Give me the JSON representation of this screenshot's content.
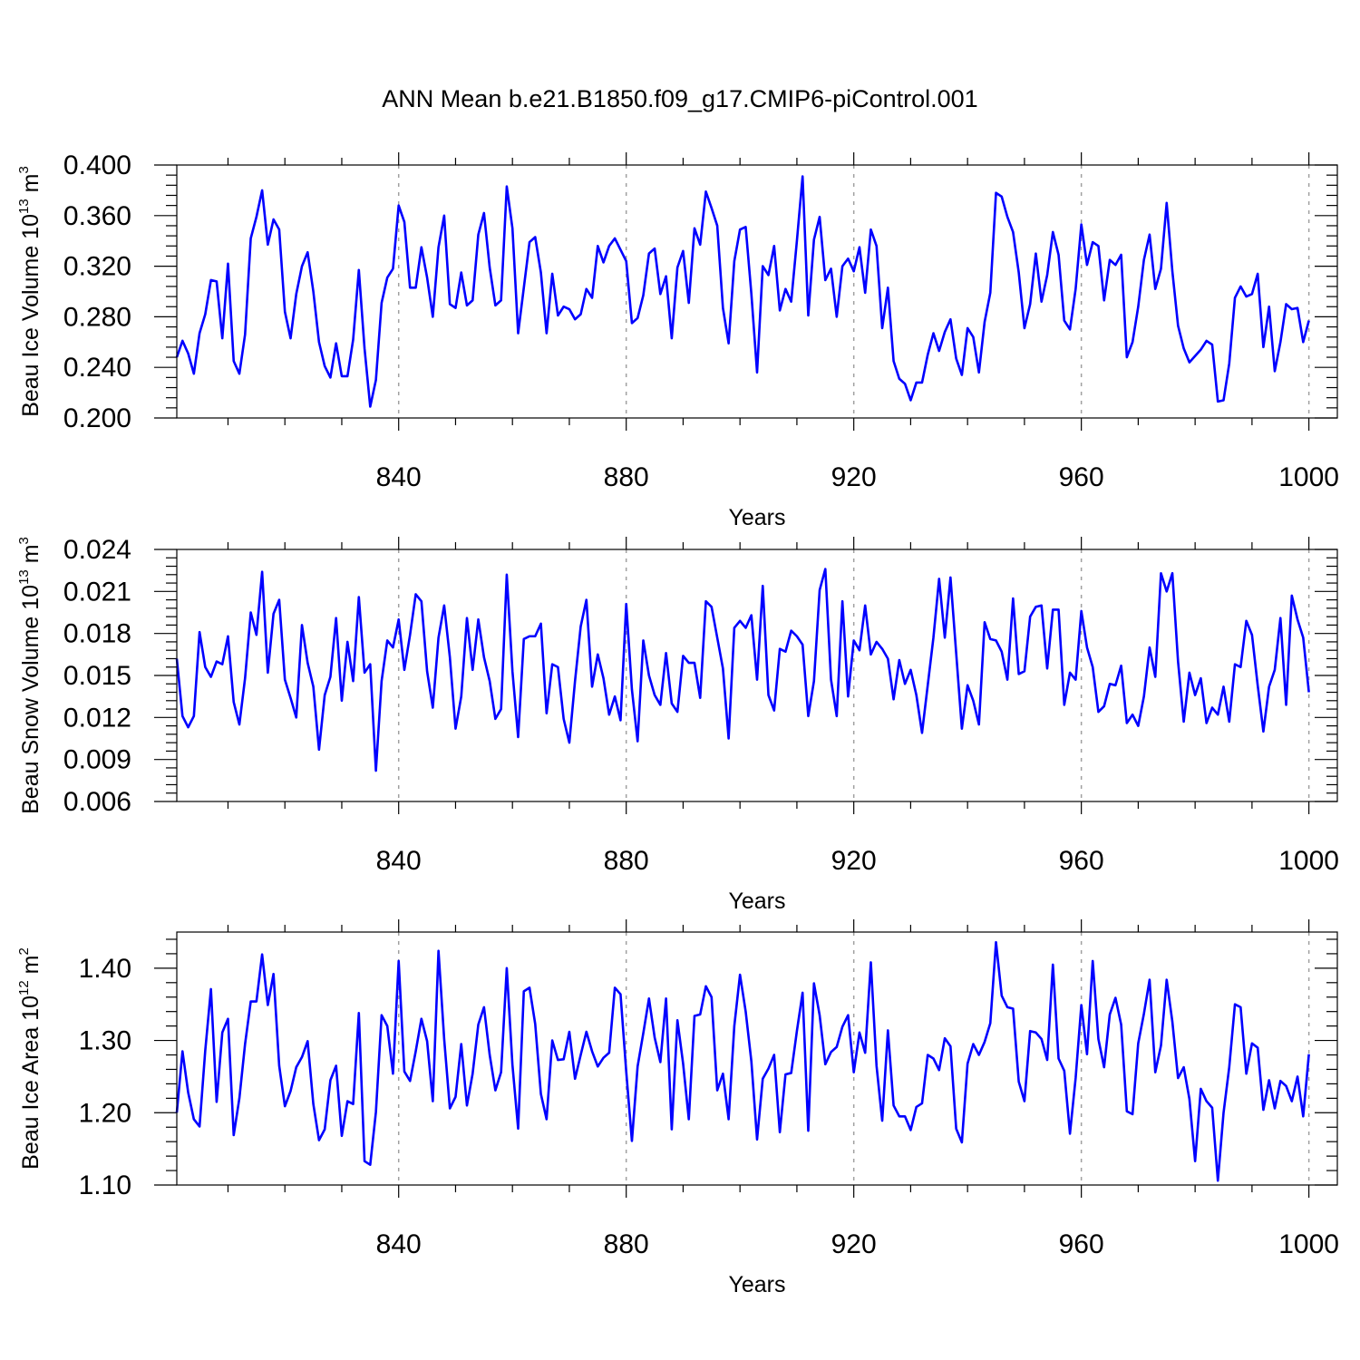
{
  "title": "ANN Mean b.e21.B1850.f09_g17.CMIP6-piControl.001",
  "chart_data": [
    {
      "type": "line",
      "ylabel": {
        "base": "Beau Ice Volume 10",
        "exp": "13",
        "unit": " m",
        "unit_exp": "3"
      },
      "xlabel": "Years",
      "xlim": [
        801,
        1005
      ],
      "ylim": [
        0.2,
        0.4
      ],
      "y_ticks": [
        0.2,
        0.24,
        0.28,
        0.32,
        0.36,
        0.4
      ],
      "y_tick_labels": [
        "0.200",
        "0.240",
        "0.280",
        "0.320",
        "0.360",
        "0.400"
      ],
      "x_ticks": [
        840,
        880,
        920,
        960,
        1000
      ],
      "x_tick_labels": [
        "840",
        "880",
        "920",
        "960",
        "1000"
      ],
      "x_start": 801,
      "series": [
        {
          "name": "Beau Ice Volume",
          "color": "#0000ff",
          "values": [
            0.248,
            0.261,
            0.251,
            0.235,
            0.267,
            0.282,
            0.309,
            0.308,
            0.263,
            0.322,
            0.245,
            0.235,
            0.266,
            0.342,
            0.359,
            0.38,
            0.337,
            0.357,
            0.349,
            0.284,
            0.263,
            0.298,
            0.32,
            0.331,
            0.3,
            0.26,
            0.241,
            0.232,
            0.259,
            0.233,
            0.233,
            0.262,
            0.317,
            0.255,
            0.209,
            0.23,
            0.291,
            0.311,
            0.318,
            0.368,
            0.355,
            0.303,
            0.303,
            0.335,
            0.311,
            0.28,
            0.335,
            0.36,
            0.29,
            0.287,
            0.315,
            0.289,
            0.293,
            0.345,
            0.362,
            0.319,
            0.289,
            0.293,
            0.383,
            0.35,
            0.267,
            0.303,
            0.339,
            0.343,
            0.315,
            0.267,
            0.314,
            0.281,
            0.288,
            0.286,
            0.278,
            0.282,
            0.302,
            0.295,
            0.336,
            0.323,
            0.336,
            0.342,
            0.333,
            0.324,
            0.275,
            0.279,
            0.297,
            0.33,
            0.334,
            0.298,
            0.312,
            0.263,
            0.319,
            0.332,
            0.291,
            0.35,
            0.337,
            0.379,
            0.366,
            0.352,
            0.287,
            0.259,
            0.324,
            0.349,
            0.351,
            0.298,
            0.236,
            0.32,
            0.313,
            0.336,
            0.285,
            0.302,
            0.292,
            0.34,
            0.391,
            0.281,
            0.341,
            0.359,
            0.309,
            0.318,
            0.28,
            0.32,
            0.326,
            0.316,
            0.335,
            0.299,
            0.349,
            0.336,
            0.271,
            0.303,
            0.245,
            0.231,
            0.227,
            0.214,
            0.228,
            0.228,
            0.25,
            0.267,
            0.253,
            0.268,
            0.278,
            0.247,
            0.234,
            0.271,
            0.264,
            0.236,
            0.276,
            0.299,
            0.378,
            0.375,
            0.359,
            0.347,
            0.315,
            0.271,
            0.29,
            0.33,
            0.292,
            0.313,
            0.347,
            0.329,
            0.277,
            0.27,
            0.302,
            0.353,
            0.321,
            0.339,
            0.336,
            0.293,
            0.325,
            0.321,
            0.329,
            0.248,
            0.26,
            0.288,
            0.325,
            0.345,
            0.302,
            0.318,
            0.37,
            0.316,
            0.273,
            0.255,
            0.244,
            0.249,
            0.254,
            0.261,
            0.258,
            0.213,
            0.214,
            0.243,
            0.295,
            0.304,
            0.296,
            0.298,
            0.314,
            0.256,
            0.288,
            0.237,
            0.26,
            0.29,
            0.286,
            0.287,
            0.26,
            0.277
          ]
        }
      ]
    },
    {
      "type": "line",
      "ylabel": {
        "base": "Beau Snow Volume 10",
        "exp": "13",
        "unit": " m",
        "unit_exp": "3"
      },
      "xlabel": "Years",
      "xlim": [
        801,
        1005
      ],
      "ylim": [
        0.006,
        0.024
      ],
      "y_ticks": [
        0.006,
        0.009,
        0.012,
        0.015,
        0.018,
        0.021,
        0.024
      ],
      "y_tick_labels": [
        "0.006",
        "0.009",
        "0.012",
        "0.015",
        "0.018",
        "0.021",
        "0.024"
      ],
      "x_ticks": [
        840,
        880,
        920,
        960,
        1000
      ],
      "x_tick_labels": [
        "840",
        "880",
        "920",
        "960",
        "1000"
      ],
      "x_start": 801,
      "series": [
        {
          "name": "Beau Snow Volume",
          "color": "#0000ff",
          "values": [
            0.0162,
            0.0121,
            0.0113,
            0.0121,
            0.0181,
            0.0156,
            0.0149,
            0.016,
            0.0158,
            0.0178,
            0.0131,
            0.0115,
            0.0148,
            0.0195,
            0.0179,
            0.0224,
            0.0152,
            0.0194,
            0.0204,
            0.0147,
            0.0134,
            0.012,
            0.0186,
            0.0159,
            0.0142,
            0.0097,
            0.0136,
            0.0149,
            0.0191,
            0.0132,
            0.0174,
            0.0146,
            0.0206,
            0.0152,
            0.0158,
            0.0082,
            0.0146,
            0.0175,
            0.017,
            0.019,
            0.0154,
            0.0179,
            0.0208,
            0.0203,
            0.0153,
            0.0127,
            0.0177,
            0.02,
            0.0163,
            0.0112,
            0.0135,
            0.0191,
            0.0154,
            0.019,
            0.0163,
            0.0146,
            0.0119,
            0.0126,
            0.0222,
            0.0153,
            0.0106,
            0.0176,
            0.0178,
            0.0178,
            0.0187,
            0.0123,
            0.0158,
            0.0156,
            0.0119,
            0.0102,
            0.0146,
            0.0185,
            0.0204,
            0.0142,
            0.0165,
            0.0148,
            0.0122,
            0.0135,
            0.0118,
            0.0201,
            0.014,
            0.0103,
            0.0175,
            0.015,
            0.0136,
            0.0129,
            0.0166,
            0.013,
            0.0124,
            0.0164,
            0.0159,
            0.0159,
            0.0134,
            0.0203,
            0.0199,
            0.0177,
            0.0155,
            0.0105,
            0.0184,
            0.0189,
            0.0184,
            0.0193,
            0.0147,
            0.0214,
            0.0136,
            0.0125,
            0.0169,
            0.0167,
            0.0182,
            0.0178,
            0.0172,
            0.0121,
            0.0146,
            0.0211,
            0.0226,
            0.0147,
            0.0121,
            0.0203,
            0.0135,
            0.0175,
            0.0168,
            0.02,
            0.0165,
            0.0174,
            0.0169,
            0.0162,
            0.0133,
            0.0161,
            0.0144,
            0.0154,
            0.0136,
            0.0109,
            0.0143,
            0.0177,
            0.0219,
            0.0177,
            0.022,
            0.0166,
            0.0112,
            0.0143,
            0.0132,
            0.0115,
            0.0188,
            0.0176,
            0.0175,
            0.0167,
            0.0147,
            0.0205,
            0.0151,
            0.0153,
            0.0192,
            0.0199,
            0.02,
            0.0155,
            0.0197,
            0.0197,
            0.0129,
            0.0152,
            0.0147,
            0.0196,
            0.017,
            0.0156,
            0.0124,
            0.0128,
            0.0144,
            0.0143,
            0.0157,
            0.0116,
            0.0122,
            0.0114,
            0.0135,
            0.017,
            0.0149,
            0.0223,
            0.021,
            0.0223,
            0.016,
            0.0117,
            0.0152,
            0.0136,
            0.0148,
            0.0116,
            0.0127,
            0.0122,
            0.0142,
            0.0117,
            0.0158,
            0.0156,
            0.0189,
            0.0179,
            0.0143,
            0.011,
            0.0142,
            0.0154,
            0.0191,
            0.0129,
            0.0207,
            0.019,
            0.0177,
            0.0138
          ]
        }
      ]
    },
    {
      "type": "line",
      "ylabel": {
        "base": "Beau Ice Area 10",
        "exp": "12",
        "unit": " m",
        "unit_exp": "2"
      },
      "xlabel": "Years",
      "xlim": [
        801,
        1005
      ],
      "ylim": [
        1.1,
        1.45
      ],
      "y_ticks": [
        1.1,
        1.2,
        1.3,
        1.4
      ],
      "y_tick_labels": [
        "1.10",
        "1.20",
        "1.30",
        "1.40"
      ],
      "x_ticks": [
        840,
        880,
        920,
        960,
        1000
      ],
      "x_tick_labels": [
        "840",
        "880",
        "920",
        "960",
        "1000"
      ],
      "x_start": 801,
      "series": [
        {
          "name": "Beau Ice Area",
          "color": "#0000ff",
          "values": [
            1.2,
            1.285,
            1.228,
            1.191,
            1.181,
            1.286,
            1.371,
            1.215,
            1.311,
            1.33,
            1.169,
            1.22,
            1.295,
            1.354,
            1.354,
            1.419,
            1.349,
            1.392,
            1.265,
            1.209,
            1.23,
            1.263,
            1.277,
            1.299,
            1.212,
            1.162,
            1.177,
            1.245,
            1.265,
            1.168,
            1.216,
            1.212,
            1.338,
            1.133,
            1.128,
            1.201,
            1.335,
            1.32,
            1.254,
            1.41,
            1.257,
            1.244,
            1.285,
            1.33,
            1.299,
            1.216,
            1.424,
            1.302,
            1.206,
            1.222,
            1.295,
            1.21,
            1.254,
            1.322,
            1.346,
            1.28,
            1.231,
            1.256,
            1.4,
            1.266,
            1.178,
            1.368,
            1.373,
            1.323,
            1.226,
            1.191,
            1.3,
            1.273,
            1.274,
            1.312,
            1.247,
            1.28,
            1.312,
            1.285,
            1.264,
            1.276,
            1.283,
            1.373,
            1.364,
            1.257,
            1.161,
            1.264,
            1.31,
            1.358,
            1.304,
            1.27,
            1.358,
            1.177,
            1.328,
            1.268,
            1.191,
            1.334,
            1.336,
            1.375,
            1.36,
            1.231,
            1.254,
            1.191,
            1.32,
            1.391,
            1.34,
            1.271,
            1.163,
            1.247,
            1.261,
            1.28,
            1.173,
            1.253,
            1.255,
            1.313,
            1.366,
            1.175,
            1.379,
            1.335,
            1.267,
            1.284,
            1.291,
            1.319,
            1.335,
            1.256,
            1.311,
            1.283,
            1.408,
            1.265,
            1.189,
            1.314,
            1.21,
            1.195,
            1.195,
            1.176,
            1.208,
            1.213,
            1.28,
            1.275,
            1.259,
            1.303,
            1.292,
            1.178,
            1.159,
            1.268,
            1.295,
            1.28,
            1.298,
            1.324,
            1.436,
            1.362,
            1.346,
            1.344,
            1.243,
            1.216,
            1.313,
            1.311,
            1.302,
            1.273,
            1.405,
            1.275,
            1.258,
            1.171,
            1.248,
            1.349,
            1.281,
            1.41,
            1.302,
            1.263,
            1.336,
            1.359,
            1.322,
            1.202,
            1.198,
            1.296,
            1.337,
            1.384,
            1.256,
            1.293,
            1.384,
            1.326,
            1.248,
            1.263,
            1.219,
            1.133,
            1.233,
            1.216,
            1.207,
            1.106,
            1.2,
            1.263,
            1.35,
            1.346,
            1.254,
            1.296,
            1.29,
            1.204,
            1.245,
            1.206,
            1.244,
            1.237,
            1.216,
            1.25,
            1.195,
            1.281
          ]
        }
      ]
    }
  ]
}
